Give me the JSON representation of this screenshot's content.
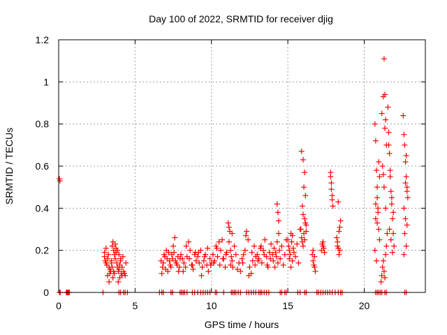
{
  "chart_data": {
    "type": "scatter",
    "title": "Day 100 of 2022, SRMTID for receiver djig",
    "xlabel": "GPS time / hours",
    "ylabel": "SRMTID / TECUs",
    "xlim": [
      0,
      24
    ],
    "ylim": [
      0,
      1.2
    ],
    "xticks": [
      0,
      5,
      10,
      15,
      20
    ],
    "xtick_labels": [
      "0",
      "5",
      "10",
      "15",
      "20"
    ],
    "yticks": [
      0,
      0.2,
      0.4,
      0.6,
      0.8,
      1.0,
      1.2
    ],
    "ytick_labels": [
      "0",
      "0.2",
      "0.4",
      "0.6",
      "0.8",
      "1",
      "1.2"
    ],
    "grid": true,
    "marker": "plus",
    "color": "#ff0000",
    "series": [
      {
        "name": "SRMTID",
        "zero_x": [
          0.05,
          0.1,
          0.5,
          0.55,
          0.6,
          0.65,
          0.7,
          2.9,
          3.95,
          4.05,
          4.25,
          4.35,
          4.5,
          6.6,
          6.75,
          6.85,
          7.35,
          7.45,
          7.95,
          8.05,
          8.15,
          8.25,
          8.4,
          8.75,
          8.9,
          9.1,
          9.3,
          9.45,
          9.6,
          9.75,
          9.9,
          10.25,
          10.35,
          10.8,
          11.3,
          11.4,
          11.5,
          11.6,
          11.75,
          11.9,
          12.3,
          12.45,
          12.6,
          12.75,
          12.9,
          13.1,
          13.2,
          13.3,
          13.45,
          13.6,
          13.75,
          14.5,
          14.6,
          14.8,
          14.9,
          15.65,
          15.8,
          16.1,
          16.2,
          16.9,
          17.0,
          17.15,
          17.3,
          17.45,
          17.6,
          17.75,
          17.9,
          18.1,
          18.3,
          18.45,
          18.55,
          20.75,
          20.85,
          20.95,
          21.05,
          21.15,
          21.35,
          21.45,
          22.65,
          22.75
        ],
        "x": [
          0.05,
          0.08,
          3.0,
          3.05,
          3.1,
          3.15,
          3.2,
          3.25,
          3.3,
          3.35,
          3.4,
          3.45,
          3.0,
          3.1,
          3.2,
          3.3,
          3.35,
          3.45,
          3.5,
          3.55,
          3.6,
          3.65,
          3.7,
          3.75,
          3.5,
          3.6,
          3.7,
          3.55,
          3.65,
          3.75,
          3.8,
          3.85,
          3.9,
          3.95,
          4.0,
          4.05,
          4.1,
          4.15,
          4.2,
          3.85,
          3.95,
          4.05,
          4.15,
          4.25,
          4.3,
          4.35,
          4.4,
          3.9,
          4.0,
          6.7,
          6.8,
          6.9,
          7.0,
          7.1,
          7.2,
          7.3,
          6.75,
          6.85,
          6.95,
          7.05,
          7.15,
          7.25,
          7.35,
          7.4,
          7.45,
          7.5,
          7.6,
          7.7,
          7.8,
          7.9,
          8.0,
          7.55,
          7.65,
          7.75,
          7.85,
          7.95,
          8.1,
          8.2,
          8.3,
          8.4,
          8.5,
          8.6,
          8.7,
          8.8,
          8.9,
          9.0,
          8.15,
          8.35,
          8.55,
          8.75,
          8.95,
          9.1,
          9.2,
          9.3,
          9.4,
          9.5,
          9.6,
          9.7,
          9.8,
          9.9,
          10.0,
          9.15,
          9.35,
          9.55,
          9.75,
          9.95,
          10.1,
          10.2,
          10.3,
          10.4,
          10.5,
          10.6,
          10.7,
          10.8,
          10.9,
          11.0,
          10.15,
          10.35,
          10.55,
          10.75,
          10.95,
          11.1,
          11.15,
          11.2,
          11.25,
          11.3,
          11.35,
          11.4,
          11.5,
          11.6,
          11.7,
          11.8,
          11.9,
          11.15,
          11.25,
          11.35,
          12.0,
          12.1,
          12.2,
          12.3,
          12.4,
          12.5,
          12.6,
          12.7,
          12.8,
          12.9,
          12.05,
          12.25,
          12.45,
          12.65,
          12.85,
          13.0,
          13.1,
          13.2,
          13.3,
          13.4,
          13.5,
          13.6,
          13.7,
          13.8,
          13.9,
          13.05,
          13.25,
          13.45,
          13.65,
          13.85,
          14.0,
          14.05,
          14.1,
          14.15,
          14.2,
          14.25,
          14.3,
          14.35,
          14.4,
          14.45,
          14.5,
          14.6,
          14.7,
          14.8,
          14.9,
          14.3,
          14.35,
          14.4,
          15.0,
          15.05,
          15.1,
          15.15,
          15.2,
          15.25,
          15.3,
          15.35,
          15.4,
          15.5,
          15.6,
          15.7,
          15.8,
          15.1,
          15.2,
          15.3,
          15.85,
          15.9,
          15.95,
          16.0,
          16.05,
          16.1,
          16.15,
          16.2,
          15.9,
          16.0,
          16.1,
          16.05,
          16.15,
          15.95,
          16.0,
          16.1,
          16.2,
          16.6,
          16.65,
          16.7,
          16.75,
          16.8,
          16.65,
          16.75,
          17.2,
          17.25,
          17.3,
          17.35,
          17.4,
          17.3,
          17.8,
          17.85,
          17.9,
          17.95,
          17.85,
          17.9,
          17.8,
          18.2,
          18.25,
          18.3,
          18.35,
          18.4,
          18.45,
          18.25,
          18.35,
          18.4,
          18.3,
          20.7,
          20.75,
          20.8,
          20.85,
          20.9,
          20.95,
          21.0,
          20.75,
          20.85,
          20.95,
          20.7,
          20.8,
          20.9,
          21.0,
          20.75,
          20.85,
          21.1,
          21.15,
          21.2,
          21.25,
          21.3,
          21.35,
          21.4,
          21.45,
          21.5,
          21.15,
          21.25,
          21.35,
          21.45,
          21.2,
          21.3,
          21.4,
          21.3,
          21.35,
          21.4,
          21.25,
          21.55,
          21.6,
          21.65,
          21.7,
          21.75,
          21.8,
          21.85,
          21.9,
          21.95,
          21.6,
          21.7,
          21.8,
          21.9,
          21.65,
          21.75,
          21.85,
          22.55,
          22.6,
          22.65,
          22.7,
          22.75,
          22.8,
          22.85,
          22.6,
          22.7,
          22.8,
          22.65,
          22.75,
          22.7,
          22.8,
          22.6,
          22.75
        ],
        "y": [
          0.54,
          0.53,
          0.17,
          0.15,
          0.14,
          0.13,
          0.16,
          0.18,
          0.12,
          0.11,
          0.1,
          0.15,
          0.19,
          0.21,
          0.08,
          0.05,
          0.09,
          0.14,
          0.22,
          0.24,
          0.2,
          0.18,
          0.23,
          0.21,
          0.12,
          0.1,
          0.16,
          0.07,
          0.09,
          0.19,
          0.14,
          0.12,
          0.1,
          0.11,
          0.13,
          0.15,
          0.09,
          0.08,
          0.17,
          0.2,
          0.18,
          0.16,
          0.12,
          0.1,
          0.09,
          0.08,
          0.14,
          0.05,
          0.07,
          0.15,
          0.12,
          0.18,
          0.11,
          0.16,
          0.19,
          0.13,
          0.09,
          0.14,
          0.17,
          0.2,
          0.1,
          0.15,
          0.12,
          0.18,
          0.16,
          0.22,
          0.26,
          0.14,
          0.17,
          0.12,
          0.18,
          0.19,
          0.15,
          0.13,
          0.1,
          0.16,
          0.16,
          0.14,
          0.12,
          0.17,
          0.24,
          0.2,
          0.13,
          0.11,
          0.18,
          0.15,
          0.1,
          0.22,
          0.16,
          0.13,
          0.19,
          0.17,
          0.14,
          0.2,
          0.12,
          0.15,
          0.18,
          0.13,
          0.1,
          0.16,
          0.14,
          0.19,
          0.08,
          0.17,
          0.21,
          0.13,
          0.18,
          0.15,
          0.22,
          0.17,
          0.24,
          0.2,
          0.25,
          0.16,
          0.12,
          0.19,
          0.14,
          0.21,
          0.13,
          0.16,
          0.18,
          0.33,
          0.31,
          0.29,
          0.2,
          0.17,
          0.15,
          0.12,
          0.22,
          0.18,
          0.11,
          0.14,
          0.1,
          0.24,
          0.13,
          0.28,
          0.16,
          0.18,
          0.2,
          0.29,
          0.25,
          0.12,
          0.09,
          0.15,
          0.22,
          0.17,
          0.14,
          0.27,
          0.08,
          0.19,
          0.13,
          0.18,
          0.16,
          0.21,
          0.14,
          0.2,
          0.25,
          0.17,
          0.12,
          0.19,
          0.23,
          0.15,
          0.22,
          0.18,
          0.13,
          0.16,
          0.18,
          0.15,
          0.21,
          0.12,
          0.19,
          0.17,
          0.24,
          0.14,
          0.28,
          0.2,
          0.16,
          0.22,
          0.13,
          0.18,
          0.25,
          0.42,
          0.38,
          0.34,
          0.25,
          0.22,
          0.2,
          0.18,
          0.28,
          0.24,
          0.15,
          0.21,
          0.19,
          0.17,
          0.23,
          0.14,
          0.3,
          0.16,
          0.12,
          0.27,
          0.3,
          0.26,
          0.24,
          0.22,
          0.28,
          0.25,
          0.33,
          0.29,
          0.67,
          0.63,
          0.57,
          0.5,
          0.46,
          0.41,
          0.37,
          0.35,
          0.32,
          0.18,
          0.15,
          0.13,
          0.12,
          0.1,
          0.2,
          0.17,
          0.2,
          0.23,
          0.24,
          0.21,
          0.19,
          0.22,
          0.55,
          0.49,
          0.46,
          0.41,
          0.52,
          0.44,
          0.57,
          0.26,
          0.24,
          0.21,
          0.18,
          0.31,
          0.34,
          0.22,
          0.29,
          0.2,
          0.43,
          0.8,
          0.72,
          0.58,
          0.45,
          0.38,
          0.3,
          0.25,
          0.35,
          0.5,
          0.62,
          0.2,
          0.15,
          0.4,
          0.55,
          0.42,
          0.33,
          0.05,
          0.08,
          0.12,
          0.15,
          0.1,
          0.07,
          0.18,
          0.22,
          0.28,
          0.85,
          0.93,
          0.78,
          0.7,
          0.6,
          0.5,
          0.4,
          1.11,
          0.94,
          0.82,
          0.56,
          0.88,
          0.76,
          0.66,
          0.58,
          0.48,
          0.42,
          0.35,
          0.28,
          0.22,
          0.7,
          0.55,
          0.45,
          0.38,
          0.3,
          0.25,
          0.19,
          0.84,
          0.75,
          0.7,
          0.62,
          0.55,
          0.5,
          0.45,
          0.4,
          0.35,
          0.32,
          0.28,
          0.22,
          0.52,
          0.48,
          0.18,
          0.65
        ]
      }
    ]
  }
}
